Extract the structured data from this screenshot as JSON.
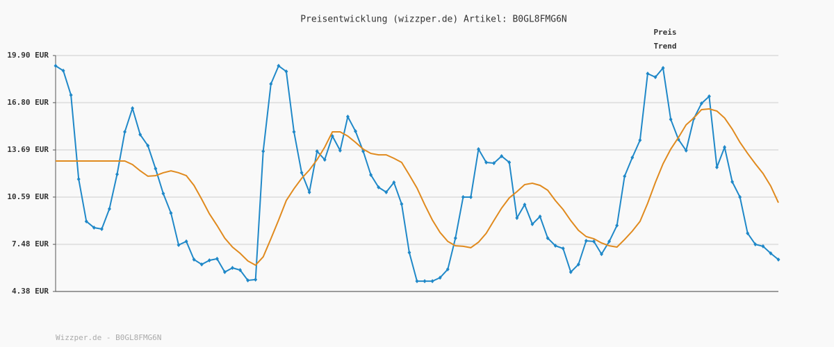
{
  "chart_data": {
    "type": "line",
    "title": "Preisentwicklung (wizzper.de) Artikel: B0GL8FMG6N",
    "footer": "Wizzper.de - B0GL8FMG6N",
    "categories": [
      null,
      null,
      null,
      null,
      null,
      null,
      null,
      null,
      null,
      null,
      null,
      null,
      null,
      null,
      null,
      null,
      null,
      null,
      null,
      null,
      null,
      null,
      null,
      null,
      null,
      null,
      null,
      null,
      null,
      null,
      null,
      null,
      null,
      null,
      null,
      null,
      null,
      null,
      null,
      null,
      null,
      null,
      null,
      null,
      null,
      null,
      null,
      null,
      null,
      null,
      null,
      null,
      null,
      null,
      null,
      null,
      null,
      null,
      null,
      null,
      null,
      null,
      null,
      null,
      null,
      null,
      null,
      null,
      null,
      null,
      null,
      null,
      null,
      null,
      null,
      null,
      null,
      null,
      null,
      null,
      null,
      null,
      null,
      null,
      null,
      null,
      null,
      null,
      null,
      null,
      null,
      null,
      null,
      null,
      null
    ],
    "series": [
      {
        "name": "Preis",
        "color": "#1f88c8",
        "markers": true,
        "values": [
          19.22,
          18.9,
          17.3,
          11.77,
          8.99,
          8.58,
          8.49,
          9.81,
          12.09,
          14.88,
          16.43,
          14.7,
          13.97,
          12.46,
          10.82,
          9.54,
          7.44,
          7.67,
          6.48,
          6.16,
          6.43,
          6.53,
          5.66,
          5.93,
          5.79,
          5.11,
          5.16,
          13.6,
          18.03,
          19.22,
          18.85,
          14.88,
          12.19,
          10.91,
          13.6,
          13.05,
          14.6,
          13.65,
          15.88,
          14.92,
          13.6,
          12.05,
          11.23,
          10.91,
          11.55,
          10.13,
          6.94,
          5.06,
          5.06,
          5.06,
          5.29,
          5.84,
          7.89,
          10.59,
          10.59,
          13.74,
          12.87,
          12.82,
          13.28,
          12.87,
          9.22,
          10.09,
          8.81,
          9.31,
          7.89,
          7.39,
          7.21,
          5.66,
          6.16,
          7.71,
          7.67,
          6.84,
          7.67,
          8.72,
          11.96,
          13.19,
          14.33,
          18.71,
          18.48,
          19.08,
          15.7,
          14.38,
          13.65,
          15.75,
          16.75,
          17.21,
          12.55,
          13.87,
          11.59,
          10.59,
          8.21,
          7.48,
          7.35,
          6.89,
          6.48
        ]
      },
      {
        "name": "Trend",
        "color": "#e08a1e",
        "markers": false,
        "values": [
          12.96,
          12.96,
          12.96,
          12.96,
          12.96,
          12.96,
          12.96,
          12.96,
          12.96,
          12.96,
          12.73,
          12.32,
          11.96,
          12.0,
          12.19,
          12.32,
          12.19,
          12.0,
          11.36,
          10.45,
          9.49,
          8.72,
          7.89,
          7.3,
          6.89,
          6.39,
          6.11,
          6.66,
          7.85,
          9.08,
          10.36,
          11.14,
          11.82,
          12.37,
          13.05,
          13.87,
          14.88,
          14.88,
          14.6,
          14.19,
          13.74,
          13.46,
          13.37,
          13.37,
          13.14,
          12.87,
          12.05,
          11.18,
          10.09,
          9.08,
          8.26,
          7.67,
          7.39,
          7.35,
          7.26,
          7.62,
          8.21,
          9.04,
          9.86,
          10.54,
          10.95,
          11.41,
          11.5,
          11.36,
          11.04,
          10.36,
          9.77,
          9.04,
          8.4,
          7.99,
          7.85,
          7.57,
          7.39,
          7.3,
          7.8,
          8.35,
          8.99,
          10.18,
          11.55,
          12.78,
          13.74,
          14.51,
          15.34,
          15.79,
          16.34,
          16.39,
          16.25,
          15.79,
          15.06,
          14.19,
          13.46,
          12.78,
          12.14,
          11.32,
          10.22
        ]
      }
    ],
    "ylim": [
      4.38,
      19.9
    ],
    "yticks": [
      {
        "value": 4.38,
        "label": "4.38 EUR"
      },
      {
        "value": 7.48,
        "label": "7.48 EUR"
      },
      {
        "value": 10.59,
        "label": "10.59 EUR"
      },
      {
        "value": 13.69,
        "label": "13.69 EUR"
      },
      {
        "value": 16.8,
        "label": "16.80 EUR"
      },
      {
        "value": 19.9,
        "label": "19.90 EUR"
      }
    ],
    "grid": true,
    "legend": "top-right"
  }
}
